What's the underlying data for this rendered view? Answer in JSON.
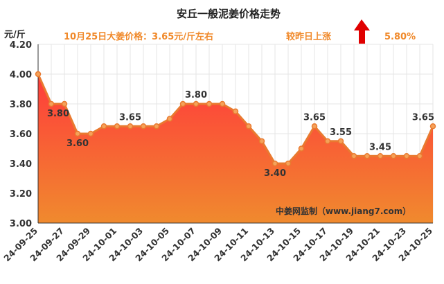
{
  "chart_data": {
    "type": "area",
    "title": "安丘一般泥姜价格走势",
    "ylabel": "元/斤",
    "subtitle": "10月25日大姜价格：3.65元/斤左右",
    "change_label": "较昨日上涨",
    "change_value": "5.80%",
    "watermark": "中姜网监制（www.jiang7.com）",
    "ylim": [
      3.0,
      4.2
    ],
    "yticks": [
      "3.00",
      "3.20",
      "3.40",
      "3.60",
      "3.80",
      "4.00",
      "4.20"
    ],
    "grid": true,
    "colors": {
      "line": "#e97a30",
      "marker": "#f5a25a",
      "arrow": "#e00000",
      "fill_top": "#ff3b3b",
      "fill_bottom": "#f08a2e"
    },
    "categories": [
      "24-09-25",
      "24-09-26",
      "24-09-27",
      "24-09-28",
      "24-09-29",
      "24-09-30",
      "24-10-01",
      "24-10-02",
      "24-10-03",
      "24-10-04",
      "24-10-05",
      "24-10-06",
      "24-10-07",
      "24-10-08",
      "24-10-09",
      "24-10-10",
      "24-10-11",
      "24-10-12",
      "24-10-13",
      "24-10-14",
      "24-10-15",
      "24-10-16",
      "24-10-17",
      "24-10-18",
      "24-10-19",
      "24-10-20",
      "24-10-21",
      "24-10-22",
      "24-10-23",
      "24-10-24",
      "24-10-25"
    ],
    "xtick_labels": [
      "24-09-25",
      "24-09-27",
      "24-09-29",
      "24-10-01",
      "24-10-03",
      "24-10-05",
      "24-10-07",
      "24-10-09",
      "24-10-11",
      "24-10-13",
      "24-10-15",
      "24-10-17",
      "24-10-19",
      "24-10-21",
      "24-10-23",
      "24-10-25"
    ],
    "values": [
      4.0,
      3.8,
      3.8,
      3.6,
      3.6,
      3.65,
      3.65,
      3.65,
      3.65,
      3.65,
      3.7,
      3.8,
      3.8,
      3.8,
      3.8,
      3.75,
      3.65,
      3.55,
      3.4,
      3.4,
      3.5,
      3.65,
      3.55,
      3.55,
      3.45,
      3.45,
      3.45,
      3.45,
      3.45,
      3.45,
      3.65
    ],
    "data_labels": [
      {
        "index": 1,
        "text": "3.80"
      },
      {
        "index": 3,
        "text": "3.60"
      },
      {
        "index": 7,
        "text": "3.65"
      },
      {
        "index": 12,
        "text": "3.80"
      },
      {
        "index": 18,
        "text": "3.40"
      },
      {
        "index": 21,
        "text": "3.65"
      },
      {
        "index": 23,
        "text": "3.55"
      },
      {
        "index": 26,
        "text": "3.45"
      },
      {
        "index": 30,
        "text": "3.65"
      }
    ]
  }
}
